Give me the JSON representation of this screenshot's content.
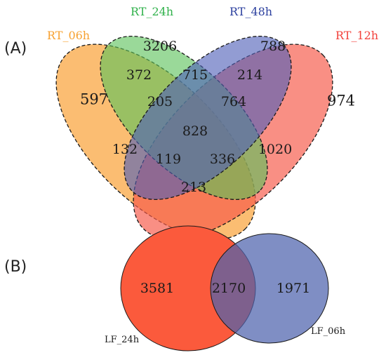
{
  "panels": {
    "a": {
      "label": "(A)",
      "sets": [
        {
          "name": "RT_06h",
          "color": "#f7a130"
        },
        {
          "name": "RT_24h",
          "color": "#2fb14a"
        },
        {
          "name": "RT_48h",
          "color": "#2b3f9e"
        },
        {
          "name": "RT_12h",
          "color": "#f2403a"
        }
      ],
      "regions": {
        "only_06h": "597",
        "only_24h": "3206",
        "only_48h": "788",
        "only_12h": "974",
        "r06_24": "372",
        "r24_48": "715",
        "r48_12": "214",
        "r06_24_48": "205",
        "r24_48_12": "764",
        "all_four": "828",
        "r06_48": "132",
        "r24_12": "1020",
        "r06_48_12": "119",
        "r06_24_12": "336",
        "r06_12": "213"
      },
      "colors": {
        "only_06h": "#2e5ea8",
        "only_48h": "#e8443a",
        "all_four": "#ffffff"
      }
    },
    "b": {
      "label": "(B)",
      "sets": [
        {
          "name": "LF_24h",
          "color": "#fb5a3c"
        },
        {
          "name": "LF_06h",
          "color": "#4d62ad"
        }
      ],
      "regions": {
        "only_24h": "3581",
        "both": "2170",
        "only_06h": "1971"
      }
    }
  }
}
